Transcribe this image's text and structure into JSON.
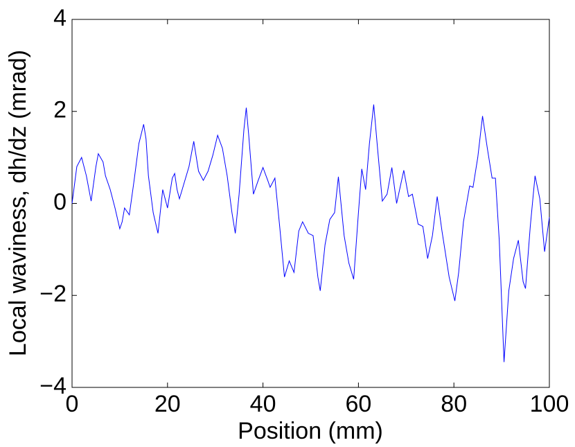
{
  "chart_data": {
    "type": "line",
    "xlabel": "Position (mm)",
    "ylabel": "Local waviness, dh/dz (mrad)",
    "xlim": [
      0,
      100
    ],
    "xticks": [
      0,
      20,
      40,
      60,
      80,
      100
    ],
    "ylim": [
      -4,
      4
    ],
    "yticks": [
      {
        "value": -4,
        "label": "−4"
      },
      {
        "value": -2,
        "label": "−2"
      },
      0,
      2,
      4
    ],
    "grid": false,
    "x": [
      0,
      1,
      2,
      3,
      4,
      5,
      5.5,
      6.5,
      7,
      8,
      9,
      10,
      10.5,
      11,
      12,
      13,
      14,
      15,
      15.5,
      16,
      17,
      18,
      19,
      20,
      21,
      21.5,
      22,
      22.5,
      23.5,
      24.5,
      25.5,
      26.5,
      27.5,
      28.5,
      29.5,
      30.5,
      31.5,
      32.5,
      33.5,
      34.2,
      35,
      36,
      36.5,
      37,
      38,
      39,
      40,
      41,
      41.5,
      42.5,
      43.5,
      44.5,
      45.5,
      46.5,
      47.5,
      48.3,
      49.5,
      50.5,
      51.5,
      52,
      53,
      54,
      55,
      55.8,
      57,
      58,
      59,
      60,
      60.7,
      61.5,
      62.3,
      63.2,
      64,
      65,
      66,
      67,
      68,
      69.5,
      70.5,
      71.3,
      72.5,
      73.5,
      74.5,
      75.5,
      76.5,
      77.5,
      79,
      80.2,
      81,
      82,
      83.3,
      84,
      85,
      86,
      87,
      88,
      88.7,
      89.5,
      90.5,
      91.5,
      92.5,
      93.5,
      94.5,
      95,
      96,
      97,
      98,
      99,
      100
    ],
    "series": [
      {
        "color": "#0000ff",
        "values": [
          0,
          0.8,
          1.0,
          0.6,
          0.05,
          0.8,
          1.08,
          0.9,
          0.6,
          0.3,
          -0.1,
          -0.55,
          -0.4,
          -0.1,
          -0.25,
          0.5,
          1.3,
          1.72,
          1.4,
          0.6,
          -0.2,
          -0.65,
          0.3,
          -0.1,
          0.55,
          0.65,
          0.3,
          0.1,
          0.45,
          0.8,
          1.35,
          0.7,
          0.5,
          0.7,
          1.05,
          1.48,
          1.2,
          0.6,
          -0.2,
          -0.65,
          0.2,
          1.6,
          2.08,
          1.5,
          0.2,
          0.5,
          0.78,
          0.5,
          0.35,
          0.55,
          -0.5,
          -1.6,
          -1.25,
          -1.5,
          -0.6,
          -0.4,
          -0.65,
          -0.7,
          -1.6,
          -1.9,
          -0.9,
          -0.35,
          -0.2,
          0.58,
          -0.7,
          -1.3,
          -1.65,
          -0.2,
          0.75,
          0.3,
          1.3,
          2.15,
          1.2,
          0.05,
          0.2,
          0.78,
          0.0,
          0.72,
          0.15,
          0.2,
          -0.45,
          -0.5,
          -1.2,
          -0.7,
          0.15,
          -0.6,
          -1.6,
          -2.12,
          -1.5,
          -0.4,
          0.38,
          0.35,
          1.0,
          1.9,
          1.2,
          0.55,
          0.55,
          -0.8,
          -3.45,
          -1.9,
          -1.2,
          -0.8,
          -1.7,
          -1.85,
          -0.5,
          0.6,
          0.1,
          -1.05,
          -0.3
        ]
      }
    ]
  }
}
